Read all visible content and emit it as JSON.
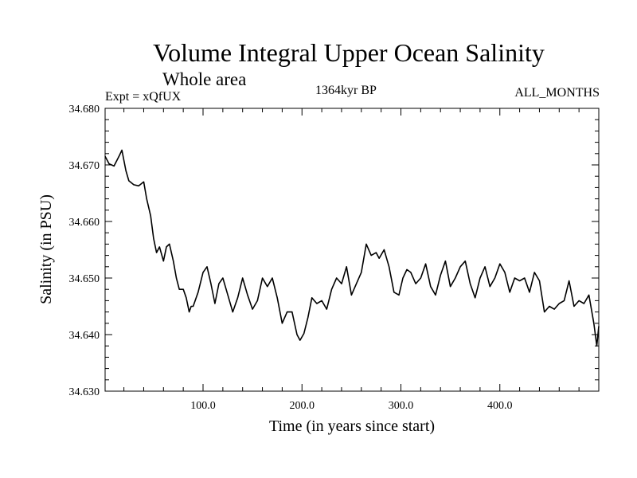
{
  "chart_data": {
    "type": "line",
    "title": "Volume Integral Upper Ocean Salinity",
    "subtitle": "Whole area",
    "experiment_label": "Expt = xQfUX",
    "period_label": "1364kyr BP",
    "months_label": "ALL_MONTHS",
    "xlabel": "Time (in years since start)",
    "ylabel": "Salinity (in PSU)",
    "xlim": [
      1,
      500
    ],
    "ylim": [
      34.63,
      34.68
    ],
    "x_ticks": [
      100,
      200,
      300,
      400
    ],
    "x_tick_labels": [
      "100.0",
      "200.0",
      "300.0",
      "400.0"
    ],
    "y_ticks": [
      34.63,
      34.64,
      34.65,
      34.66,
      34.67,
      34.68
    ],
    "y_tick_labels": [
      "34.630",
      "34.640",
      "34.650",
      "34.660",
      "34.670",
      "34.680"
    ],
    "grid": false,
    "line_color": "#000000",
    "series": [
      {
        "name": "Salinity",
        "x": [
          1,
          5,
          10,
          15,
          18,
          22,
          25,
          30,
          35,
          40,
          43,
          47,
          50,
          53,
          56,
          60,
          63,
          66,
          70,
          73,
          76,
          80,
          83,
          86,
          88,
          90,
          95,
          100,
          104,
          108,
          112,
          116,
          120,
          125,
          130,
          135,
          140,
          145,
          150,
          155,
          160,
          165,
          170,
          175,
          180,
          185,
          190,
          195,
          198,
          202,
          206,
          210,
          215,
          220,
          225,
          230,
          235,
          240,
          245,
          250,
          255,
          260,
          265,
          270,
          275,
          278,
          283,
          288,
          293,
          298,
          302,
          306,
          310,
          315,
          320,
          325,
          330,
          335,
          340,
          345,
          350,
          355,
          360,
          365,
          370,
          375,
          380,
          385,
          390,
          395,
          400,
          405,
          410,
          415,
          420,
          425,
          430,
          435,
          440,
          445,
          450,
          455,
          460,
          465,
          470,
          475,
          480,
          485,
          490,
          495,
          498,
          500
        ],
        "y": [
          34.6715,
          34.6702,
          34.6698,
          34.6715,
          34.6726,
          34.669,
          34.6672,
          34.6665,
          34.6663,
          34.667,
          34.664,
          34.661,
          34.657,
          34.6545,
          34.6555,
          34.653,
          34.6555,
          34.656,
          34.653,
          34.65,
          34.648,
          34.648,
          34.6465,
          34.644,
          34.645,
          34.645,
          34.6475,
          34.651,
          34.652,
          34.649,
          34.6455,
          34.649,
          34.65,
          34.647,
          34.644,
          34.6465,
          34.65,
          34.647,
          34.6445,
          34.646,
          34.65,
          34.6485,
          34.65,
          34.6465,
          34.642,
          34.644,
          34.644,
          34.64,
          34.639,
          34.6402,
          34.643,
          34.6465,
          34.6455,
          34.646,
          34.6445,
          34.648,
          34.65,
          34.649,
          34.652,
          34.647,
          34.649,
          34.651,
          34.656,
          34.654,
          34.6545,
          34.6535,
          34.655,
          34.652,
          34.6475,
          34.647,
          34.65,
          34.6515,
          34.651,
          34.649,
          34.65,
          34.6525,
          34.6485,
          34.647,
          34.6505,
          34.653,
          34.6485,
          34.65,
          34.652,
          34.653,
          34.649,
          34.6465,
          34.65,
          34.652,
          34.6485,
          34.65,
          34.6525,
          34.651,
          34.6475,
          34.65,
          34.6495,
          34.65,
          34.6475,
          34.651,
          34.6495,
          34.644,
          34.645,
          34.6445,
          34.6455,
          34.646,
          34.6495,
          34.645,
          34.646,
          34.6455,
          34.647,
          34.642,
          34.638,
          34.6415
        ]
      }
    ]
  }
}
